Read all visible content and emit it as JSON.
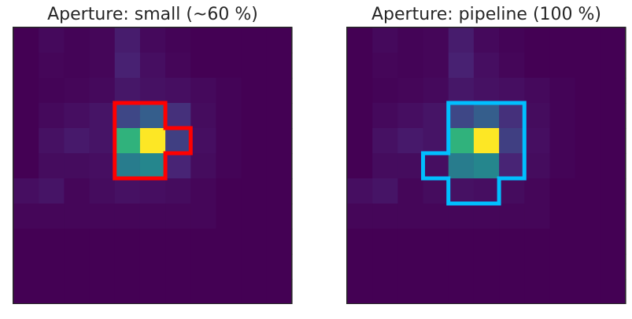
{
  "chart_data": [
    {
      "type": "heatmap",
      "title": "Aperture: small (~60 %)",
      "colormap": "viridis",
      "aperture_color": "#ff0000",
      "vmin": 0,
      "vmax": 1,
      "grid": false,
      "z": [
        [
          0.0,
          0.03,
          0.01,
          0.02,
          0.1,
          0.03,
          0.01,
          0.0,
          0.0,
          0.0,
          0.0
        ],
        [
          0.0,
          0.02,
          0.01,
          0.02,
          0.12,
          0.05,
          0.02,
          0.0,
          0.0,
          0.0,
          0.0
        ],
        [
          0.0,
          0.01,
          0.02,
          0.03,
          0.08,
          0.06,
          0.05,
          0.03,
          0.01,
          0.0,
          0.0
        ],
        [
          0.0,
          0.03,
          0.05,
          0.07,
          0.22,
          0.3,
          0.16,
          0.04,
          0.01,
          0.0,
          0.0
        ],
        [
          0.0,
          0.06,
          0.09,
          0.07,
          0.65,
          1.0,
          0.2,
          0.05,
          0.01,
          0.0,
          0.0
        ],
        [
          0.0,
          0.04,
          0.04,
          0.05,
          0.42,
          0.46,
          0.13,
          0.04,
          0.01,
          0.0,
          0.0
        ],
        [
          0.05,
          0.07,
          0.02,
          0.04,
          0.06,
          0.05,
          0.04,
          0.02,
          0.0,
          0.0,
          0.0
        ],
        [
          0.02,
          0.02,
          0.02,
          0.02,
          0.02,
          0.02,
          0.02,
          0.02,
          0.0,
          0.0,
          0.0
        ],
        [
          0.0,
          0.0,
          0.0,
          0.0,
          0.0,
          0.0,
          0.0,
          0.0,
          0.0,
          0.0,
          0.0
        ],
        [
          0.0,
          0.0,
          0.0,
          0.0,
          0.0,
          0.0,
          0.0,
          0.0,
          0.0,
          0.0,
          0.0
        ],
        [
          0.0,
          0.0,
          0.0,
          0.0,
          0.0,
          0.0,
          0.0,
          0.0,
          0.0,
          0.0,
          0.0
        ]
      ],
      "aperture_mask": [
        [
          0,
          0,
          0,
          0,
          0,
          0,
          0,
          0,
          0,
          0,
          0
        ],
        [
          0,
          0,
          0,
          0,
          0,
          0,
          0,
          0,
          0,
          0,
          0
        ],
        [
          0,
          0,
          0,
          0,
          0,
          0,
          0,
          0,
          0,
          0,
          0
        ],
        [
          0,
          0,
          0,
          0,
          1,
          1,
          0,
          0,
          0,
          0,
          0
        ],
        [
          0,
          0,
          0,
          0,
          1,
          1,
          1,
          0,
          0,
          0,
          0
        ],
        [
          0,
          0,
          0,
          0,
          1,
          1,
          0,
          0,
          0,
          0,
          0
        ],
        [
          0,
          0,
          0,
          0,
          0,
          0,
          0,
          0,
          0,
          0,
          0
        ],
        [
          0,
          0,
          0,
          0,
          0,
          0,
          0,
          0,
          0,
          0,
          0
        ],
        [
          0,
          0,
          0,
          0,
          0,
          0,
          0,
          0,
          0,
          0,
          0
        ],
        [
          0,
          0,
          0,
          0,
          0,
          0,
          0,
          0,
          0,
          0,
          0
        ],
        [
          0,
          0,
          0,
          0,
          0,
          0,
          0,
          0,
          0,
          0,
          0
        ]
      ]
    },
    {
      "type": "heatmap",
      "title": "Aperture: pipeline (100 %)",
      "colormap": "viridis",
      "aperture_color": "#00bfff",
      "vmin": 0,
      "vmax": 1,
      "grid": false,
      "z": [
        [
          0.0,
          0.03,
          0.01,
          0.02,
          0.1,
          0.03,
          0.01,
          0.0,
          0.0,
          0.0,
          0.0
        ],
        [
          0.0,
          0.02,
          0.01,
          0.02,
          0.12,
          0.05,
          0.02,
          0.0,
          0.0,
          0.0,
          0.0
        ],
        [
          0.0,
          0.01,
          0.02,
          0.03,
          0.08,
          0.06,
          0.05,
          0.03,
          0.01,
          0.0,
          0.0
        ],
        [
          0.0,
          0.03,
          0.05,
          0.07,
          0.22,
          0.3,
          0.16,
          0.04,
          0.01,
          0.0,
          0.0
        ],
        [
          0.0,
          0.06,
          0.09,
          0.07,
          0.65,
          1.0,
          0.2,
          0.05,
          0.01,
          0.0,
          0.0
        ],
        [
          0.0,
          0.04,
          0.04,
          0.05,
          0.42,
          0.46,
          0.13,
          0.04,
          0.01,
          0.0,
          0.0
        ],
        [
          0.05,
          0.07,
          0.02,
          0.04,
          0.06,
          0.05,
          0.04,
          0.02,
          0.0,
          0.0,
          0.0
        ],
        [
          0.02,
          0.02,
          0.02,
          0.02,
          0.02,
          0.02,
          0.02,
          0.02,
          0.0,
          0.0,
          0.0
        ],
        [
          0.0,
          0.0,
          0.0,
          0.0,
          0.0,
          0.0,
          0.0,
          0.0,
          0.0,
          0.0,
          0.0
        ],
        [
          0.0,
          0.0,
          0.0,
          0.0,
          0.0,
          0.0,
          0.0,
          0.0,
          0.0,
          0.0,
          0.0
        ],
        [
          0.0,
          0.0,
          0.0,
          0.0,
          0.0,
          0.0,
          0.0,
          0.0,
          0.0,
          0.0,
          0.0
        ]
      ],
      "aperture_mask": [
        [
          0,
          0,
          0,
          0,
          0,
          0,
          0,
          0,
          0,
          0,
          0
        ],
        [
          0,
          0,
          0,
          0,
          0,
          0,
          0,
          0,
          0,
          0,
          0
        ],
        [
          0,
          0,
          0,
          0,
          0,
          0,
          0,
          0,
          0,
          0,
          0
        ],
        [
          0,
          0,
          0,
          0,
          1,
          1,
          1,
          0,
          0,
          0,
          0
        ],
        [
          0,
          0,
          0,
          0,
          1,
          1,
          1,
          0,
          0,
          0,
          0
        ],
        [
          0,
          0,
          0,
          1,
          1,
          1,
          1,
          0,
          0,
          0,
          0
        ],
        [
          0,
          0,
          0,
          0,
          1,
          1,
          0,
          0,
          0,
          0,
          0
        ],
        [
          0,
          0,
          0,
          0,
          0,
          0,
          0,
          0,
          0,
          0,
          0
        ],
        [
          0,
          0,
          0,
          0,
          0,
          0,
          0,
          0,
          0,
          0,
          0
        ],
        [
          0,
          0,
          0,
          0,
          0,
          0,
          0,
          0,
          0,
          0,
          0
        ],
        [
          0,
          0,
          0,
          0,
          0,
          0,
          0,
          0,
          0,
          0,
          0
        ]
      ]
    }
  ]
}
